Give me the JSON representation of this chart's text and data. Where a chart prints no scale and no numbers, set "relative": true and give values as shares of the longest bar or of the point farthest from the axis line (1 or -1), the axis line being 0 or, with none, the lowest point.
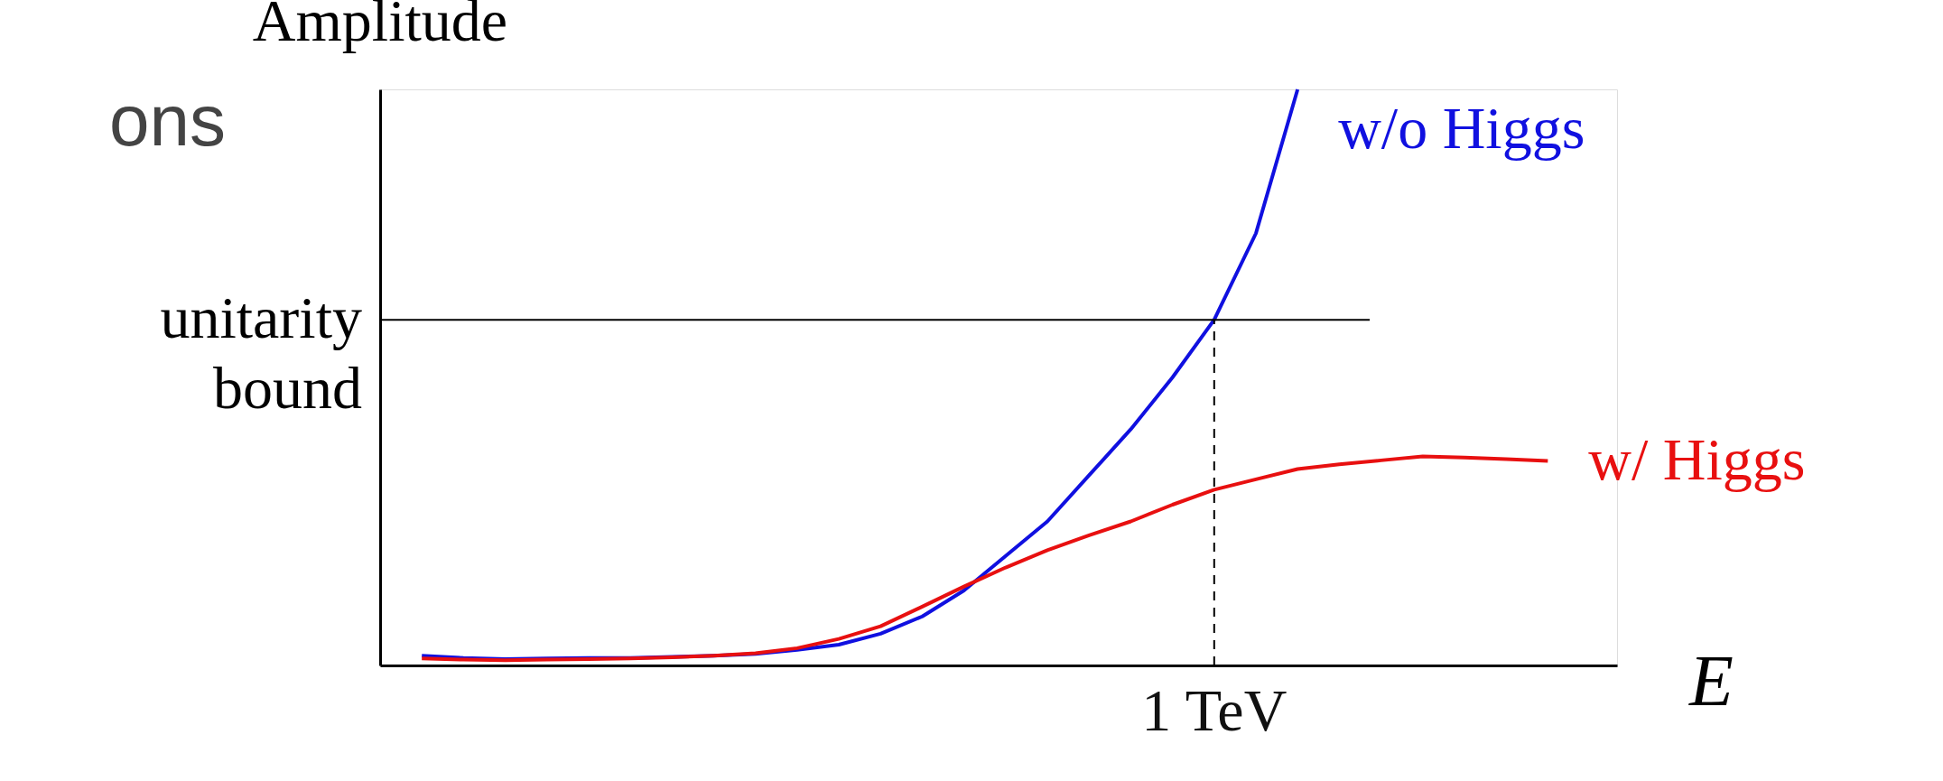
{
  "chart_data": {
    "type": "line",
    "relative": true,
    "ylabel": "Amplitude",
    "xlabel": "E",
    "grid": false,
    "marker": "none",
    "line_style": "solid",
    "categories": [
      null,
      null,
      null,
      null,
      null,
      null,
      null,
      null,
      null,
      null,
      null,
      null,
      null,
      null,
      null,
      null,
      null,
      null,
      null,
      null,
      null,
      null,
      null,
      null,
      null,
      null,
      null,
      null
    ],
    "series": [
      {
        "name": "w/o Higgs",
        "color": "#1010e0",
        "values": [
          0.017,
          0.013,
          0.011,
          0.012,
          0.013,
          0.013,
          0.015,
          0.017,
          0.02,
          0.027,
          0.036,
          0.055,
          0.085,
          0.13,
          0.19,
          0.25,
          0.33,
          0.41,
          0.5,
          0.6,
          0.75,
          1.0,
          null,
          null,
          null,
          null,
          null,
          null
        ]
      },
      {
        "name": "w/ Higgs",
        "color": "#e81010",
        "values": [
          0.012,
          0.01,
          0.009,
          0.01,
          0.011,
          0.012,
          0.014,
          0.017,
          0.021,
          0.03,
          0.046,
          0.068,
          0.102,
          0.137,
          0.17,
          0.2,
          0.226,
          0.25,
          0.279,
          0.305,
          0.323,
          0.341,
          0.349,
          0.356,
          0.363,
          0.361,
          0.358,
          0.355
        ]
      }
    ],
    "ref_lines": [
      {
        "axis": "y",
        "value": 0.6,
        "label": "unitarity bound",
        "color": "#000000",
        "line_style": "solid"
      },
      {
        "axis": "x",
        "label": "1 TeV",
        "color": "#000000",
        "line_style": "dashed"
      }
    ],
    "annotations": [
      "ons"
    ]
  }
}
